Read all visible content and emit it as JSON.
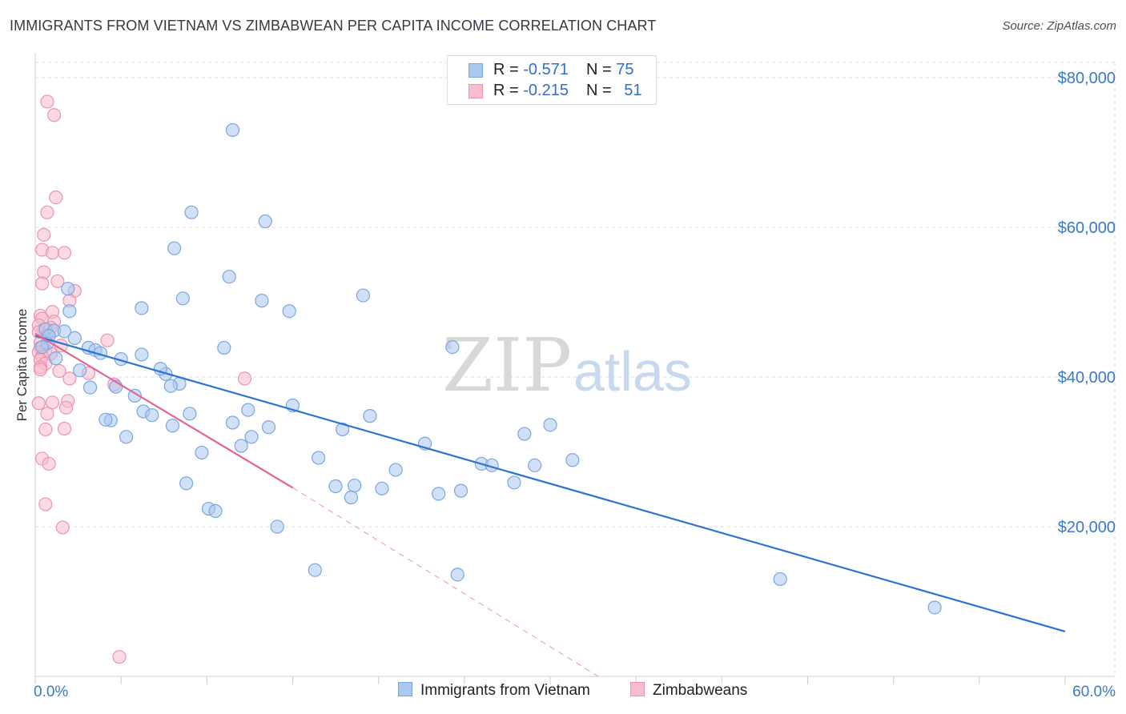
{
  "title": "IMMIGRANTS FROM VIETNAM VS ZIMBABWEAN PER CAPITA INCOME CORRELATION CHART",
  "source": "Source: ZipAtlas.com",
  "watermark": {
    "zip": "ZIP",
    "atlas": "atlas"
  },
  "colors": {
    "blue_fill": "#aac8f0",
    "blue_stroke": "#7aa6e0",
    "blue_line": "#2f72d0",
    "pink_fill": "#f7bccd",
    "pink_stroke": "#ec93b0",
    "pink_line": "#e06892",
    "axis_label": "#3a78c9",
    "grid": "#dcdcdc"
  },
  "legend": {
    "rows": [
      {
        "r_label": "R = ",
        "r_value": "-0.571",
        "n_label": "N = ",
        "n_value": "75"
      },
      {
        "r_label": "R = ",
        "r_value": "-0.215",
        "n_label": "N = ",
        "n_value": "51"
      }
    ]
  },
  "bottom_legend": {
    "series1": "Immigrants from Vietnam",
    "series2": "Zimbabweans"
  },
  "chart_data": {
    "type": "scatter",
    "xlabel": "",
    "ylabel": "Per Capita Income",
    "xlim": [
      0,
      60
    ],
    "ylim": [
      0,
      80000
    ],
    "x_tick_labels": [
      "0.0%",
      "60.0%"
    ],
    "y_tick_values": [
      20000,
      40000,
      60000,
      80000
    ],
    "y_tick_labels": [
      "$20,000",
      "$40,000",
      "$60,000",
      "$80,000"
    ],
    "grid": true,
    "series": [
      {
        "name": "Immigrants from Vietnam",
        "R": -0.571,
        "N": 75,
        "trend": {
          "x0": 0,
          "y0": 45500,
          "x1": 60,
          "y1": 6000
        },
        "points": [
          [
            11.5,
            73000
          ],
          [
            9.1,
            62000
          ],
          [
            13.4,
            60800
          ],
          [
            8.1,
            57200
          ],
          [
            11.3,
            53400
          ],
          [
            1.9,
            51800
          ],
          [
            8.6,
            50500
          ],
          [
            13.2,
            50200
          ],
          [
            19.1,
            50900
          ],
          [
            2.0,
            48800
          ],
          [
            6.2,
            49200
          ],
          [
            14.8,
            48800
          ],
          [
            0.6,
            46400
          ],
          [
            1.1,
            46200
          ],
          [
            1.7,
            46100
          ],
          [
            0.8,
            45500
          ],
          [
            2.3,
            45200
          ],
          [
            0.7,
            44500
          ],
          [
            3.1,
            43900
          ],
          [
            3.5,
            43600
          ],
          [
            11.0,
            43900
          ],
          [
            24.3,
            44000
          ],
          [
            3.8,
            43200
          ],
          [
            5.0,
            42400
          ],
          [
            6.2,
            43000
          ],
          [
            7.6,
            40400
          ],
          [
            8.4,
            39100
          ],
          [
            7.3,
            41100
          ],
          [
            3.2,
            38600
          ],
          [
            4.7,
            38700
          ],
          [
            7.9,
            38800
          ],
          [
            5.8,
            37500
          ],
          [
            9.0,
            35100
          ],
          [
            12.4,
            35600
          ],
          [
            6.3,
            35400
          ],
          [
            6.8,
            34900
          ],
          [
            4.4,
            34200
          ],
          [
            4.1,
            34300
          ],
          [
            19.5,
            34800
          ],
          [
            8.0,
            33500
          ],
          [
            11.5,
            33900
          ],
          [
            13.6,
            33300
          ],
          [
            17.9,
            33000
          ],
          [
            28.5,
            32400
          ],
          [
            30.0,
            33600
          ],
          [
            5.3,
            32000
          ],
          [
            12.6,
            32000
          ],
          [
            12.0,
            30800
          ],
          [
            9.7,
            29900
          ],
          [
            22.7,
            31100
          ],
          [
            16.5,
            29200
          ],
          [
            26.0,
            28400
          ],
          [
            26.6,
            28200
          ],
          [
            29.1,
            28200
          ],
          [
            31.3,
            28900
          ],
          [
            8.8,
            25800
          ],
          [
            17.5,
            25400
          ],
          [
            18.6,
            25500
          ],
          [
            20.2,
            25100
          ],
          [
            27.9,
            25900
          ],
          [
            23.5,
            24400
          ],
          [
            24.8,
            24800
          ],
          [
            18.4,
            23900
          ],
          [
            10.1,
            22400
          ],
          [
            10.5,
            22100
          ],
          [
            14.1,
            20000
          ],
          [
            16.3,
            14200
          ],
          [
            24.6,
            13600
          ],
          [
            43.4,
            13000
          ],
          [
            52.4,
            9200
          ],
          [
            1.2,
            42500
          ],
          [
            2.6,
            40900
          ],
          [
            15.0,
            36200
          ],
          [
            21.0,
            27600
          ],
          [
            0.4,
            44000
          ]
        ]
      },
      {
        "name": "Zimbabweans",
        "R": -0.215,
        "N": 51,
        "trend": {
          "x0": 0,
          "y0": 45800,
          "x1": 15,
          "y1": 25200,
          "dash_x1": 32.8,
          "dash_y1": 0
        },
        "points": [
          [
            0.7,
            76800
          ],
          [
            1.1,
            75000
          ],
          [
            1.2,
            64000
          ],
          [
            0.7,
            62000
          ],
          [
            0.5,
            59000
          ],
          [
            0.4,
            57000
          ],
          [
            1.0,
            56600
          ],
          [
            1.7,
            56600
          ],
          [
            0.5,
            54000
          ],
          [
            1.3,
            52800
          ],
          [
            0.4,
            52500
          ],
          [
            2.3,
            51500
          ],
          [
            2.0,
            50200
          ],
          [
            1.0,
            48700
          ],
          [
            0.3,
            48200
          ],
          [
            0.4,
            47800
          ],
          [
            1.1,
            47400
          ],
          [
            0.2,
            46900
          ],
          [
            0.9,
            46600
          ],
          [
            0.5,
            46300
          ],
          [
            0.2,
            46000
          ],
          [
            0.7,
            45600
          ],
          [
            4.2,
            44900
          ],
          [
            0.3,
            44600
          ],
          [
            1.5,
            44200
          ],
          [
            0.3,
            43900
          ],
          [
            0.6,
            43600
          ],
          [
            0.2,
            43300
          ],
          [
            0.9,
            43100
          ],
          [
            0.4,
            42700
          ],
          [
            0.3,
            42300
          ],
          [
            0.6,
            41800
          ],
          [
            0.3,
            41300
          ],
          [
            3.1,
            40500
          ],
          [
            2.0,
            39800
          ],
          [
            12.2,
            39800
          ],
          [
            4.6,
            39000
          ],
          [
            1.9,
            36800
          ],
          [
            1.0,
            36600
          ],
          [
            0.2,
            36500
          ],
          [
            1.8,
            35900
          ],
          [
            0.7,
            35100
          ],
          [
            1.7,
            33100
          ],
          [
            0.6,
            33000
          ],
          [
            0.4,
            29100
          ],
          [
            0.8,
            28400
          ],
          [
            0.6,
            23000
          ],
          [
            1.6,
            19900
          ],
          [
            4.9,
            2600
          ],
          [
            0.3,
            41000
          ],
          [
            1.4,
            40800
          ]
        ]
      }
    ]
  }
}
